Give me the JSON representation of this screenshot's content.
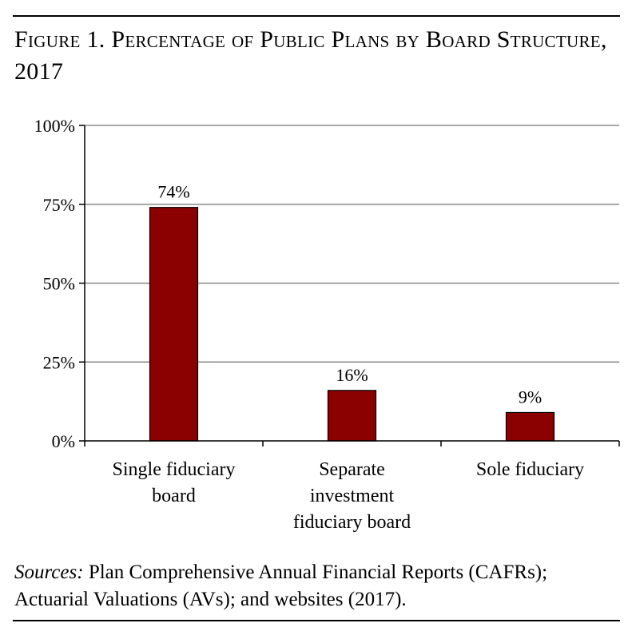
{
  "figure": {
    "title": "Figure 1. Percentage of Public Plans by Board Structure, 2017"
  },
  "source": {
    "lead": "Sources:",
    "text": " Plan Comprehensive Annual Financial Reports (CAFRs); Actuarial Valuations (AVs); and websites (2017)."
  },
  "chart_data": {
    "type": "bar",
    "title": "Figure 1. Percentage of Public Plans by Board Structure, 2017",
    "categories": [
      "Single fiduciary board",
      "Separate investment fiduciary board",
      "Sole fiduciary"
    ],
    "category_lines": [
      [
        "Single fiduciary",
        "board"
      ],
      [
        "Separate",
        "investment",
        "fiduciary board"
      ],
      [
        "Sole fiduciary"
      ]
    ],
    "values": [
      74,
      16,
      9
    ],
    "data_labels": [
      "74%",
      "16%",
      "9%"
    ],
    "yticks": [
      0,
      25,
      50,
      75,
      100
    ],
    "ytick_labels": [
      "0%",
      "25%",
      "50%",
      "75%",
      "100%"
    ],
    "ylim": [
      0,
      100
    ],
    "xlabel": "",
    "ylabel": "",
    "grid": true,
    "legend": "none",
    "bar_color": "#8b0000"
  }
}
